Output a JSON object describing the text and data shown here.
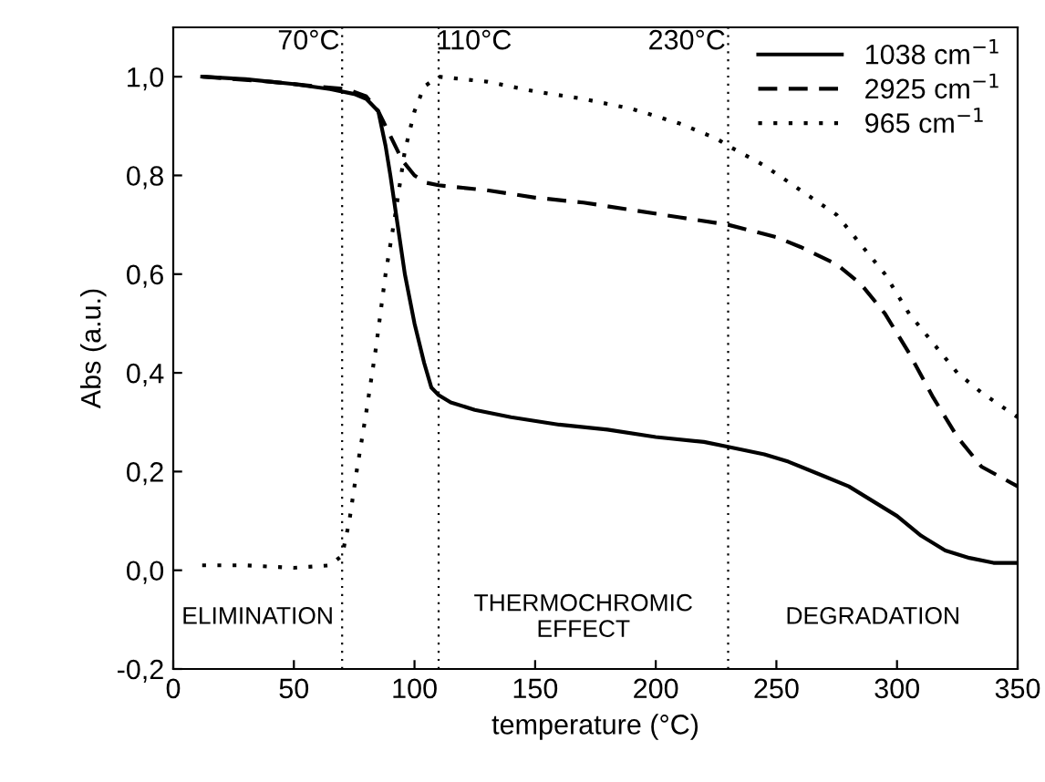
{
  "chart_data": {
    "type": "line",
    "xlabel": "temperature (°C)",
    "ylabel": "Abs (a.u.)",
    "xlim": [
      0,
      350
    ],
    "xticks": [
      0,
      50,
      100,
      150,
      200,
      250,
      300,
      350
    ],
    "ylim": [
      -0.2,
      1.1
    ],
    "yticks": [
      {
        "value": -0.2,
        "label": "-0,2"
      },
      {
        "value": 0.0,
        "label": "0,0"
      },
      {
        "value": 0.2,
        "label": "0,2"
      },
      {
        "value": 0.4,
        "label": "0,4"
      },
      {
        "value": 0.6,
        "label": "0,6"
      },
      {
        "value": 0.8,
        "label": "0,8"
      },
      {
        "value": 1.0,
        "label": "1,0"
      }
    ],
    "grid": false,
    "legend": "top right",
    "series": [
      {
        "name": "1038 cm$^{−1}$",
        "color": "#000000",
        "line_style": "solid",
        "x": [
          12,
          30,
          50,
          65,
          75,
          80,
          85,
          88,
          90,
          93,
          96,
          100,
          104,
          107,
          110,
          115,
          125,
          140,
          160,
          180,
          200,
          220,
          230,
          245,
          255,
          270,
          280,
          290,
          300,
          310,
          320,
          330,
          340,
          350
        ],
        "values": [
          1.0,
          0.995,
          0.985,
          0.975,
          0.965,
          0.955,
          0.93,
          0.86,
          0.8,
          0.7,
          0.6,
          0.5,
          0.42,
          0.37,
          0.355,
          0.34,
          0.325,
          0.31,
          0.295,
          0.285,
          0.27,
          0.26,
          0.25,
          0.235,
          0.22,
          0.19,
          0.17,
          0.14,
          0.11,
          0.07,
          0.04,
          0.025,
          0.015,
          0.015
        ]
      },
      {
        "name": "2925 cm$^{−1}$",
        "color": "#000000",
        "line_style": "dashed",
        "x": [
          12,
          40,
          60,
          72,
          80,
          85,
          90,
          95,
          100,
          105,
          110,
          130,
          150,
          170,
          190,
          210,
          230,
          250,
          260,
          275,
          285,
          295,
          305,
          315,
          325,
          335,
          350
        ],
        "values": [
          1.0,
          0.99,
          0.98,
          0.975,
          0.96,
          0.93,
          0.88,
          0.83,
          0.8,
          0.785,
          0.78,
          0.77,
          0.755,
          0.745,
          0.73,
          0.715,
          0.7,
          0.675,
          0.655,
          0.62,
          0.58,
          0.52,
          0.44,
          0.35,
          0.27,
          0.21,
          0.17
        ]
      },
      {
        "name": "965 cm$^{−1}$",
        "color": "#000000",
        "line_style": "dotted",
        "x": [
          12,
          30,
          50,
          65,
          70,
          73,
          76,
          80,
          84,
          88,
          92,
          96,
          100,
          104,
          110,
          130,
          150,
          170,
          190,
          210,
          225,
          230,
          245,
          260,
          275,
          285,
          295,
          305,
          315,
          325,
          335,
          350
        ],
        "values": [
          0.01,
          0.01,
          0.005,
          0.01,
          0.03,
          0.1,
          0.2,
          0.32,
          0.45,
          0.6,
          0.72,
          0.85,
          0.93,
          0.98,
          1.0,
          0.99,
          0.97,
          0.955,
          0.935,
          0.905,
          0.875,
          0.86,
          0.82,
          0.77,
          0.72,
          0.66,
          0.6,
          0.52,
          0.46,
          0.4,
          0.36,
          0.31
        ]
      }
    ],
    "ref_lines": [
      {
        "axis": "x",
        "value": 70,
        "label": "70°C",
        "color": "#000000",
        "line_style": "dotted"
      },
      {
        "axis": "x",
        "value": 110,
        "label": "110°C",
        "color": "#000000",
        "line_style": "dotted"
      },
      {
        "axis": "x",
        "value": 230,
        "label": "230°C",
        "color": "#000000",
        "line_style": "dotted"
      }
    ],
    "annotations": [
      "ELIMINATION",
      "THERMOCHROMIC\nEFFECT",
      "DEGRADATION"
    ]
  }
}
